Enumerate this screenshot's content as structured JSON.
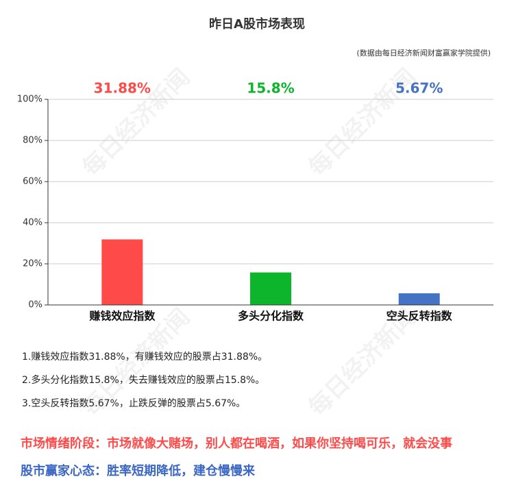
{
  "chart_data": {
    "type": "bar",
    "title": "昨日A股市场表现",
    "subtitle": "(数据由每日经济新闻财富赢家学院提供)",
    "categories": [
      "赚钱效应指数",
      "多头分化指数",
      "空头反转指数"
    ],
    "values": [
      31.88,
      15.8,
      5.67
    ],
    "value_labels": [
      "31.88%",
      "15.8%",
      "5.67%"
    ],
    "colors": [
      "#ff4a4a",
      "#0db52c",
      "#4472c4"
    ],
    "ylim": [
      0,
      100
    ],
    "yticks": [
      {
        "value": 0,
        "label": "0%"
      },
      {
        "value": 20,
        "label": "20%"
      },
      {
        "value": 40,
        "label": "40%"
      },
      {
        "value": 60,
        "label": "60%"
      },
      {
        "value": 80,
        "label": "80%"
      },
      {
        "value": 100,
        "label": "100%"
      }
    ],
    "grid": true
  },
  "notes": [
    "1.赚钱效应指数31.88%，有赚钱效应的股票占31.88%。",
    "2.多头分化指数15.8%，失去赚钱效应的股票占15.8%。",
    "3.空头反转指数5.67%，止跌反弹的股票占5.67%。"
  ],
  "highlights": [
    {
      "text": "市场情绪阶段：市场就像大赌场，别人都在喝酒，如果你坚持喝可乐，就会没事",
      "color": "#ff4a4a"
    },
    {
      "text": "股市赢家心态：胜率短期降低，建仓慢慢来",
      "color": "#3a66c4"
    }
  ],
  "watermark": "每日经济新闻"
}
